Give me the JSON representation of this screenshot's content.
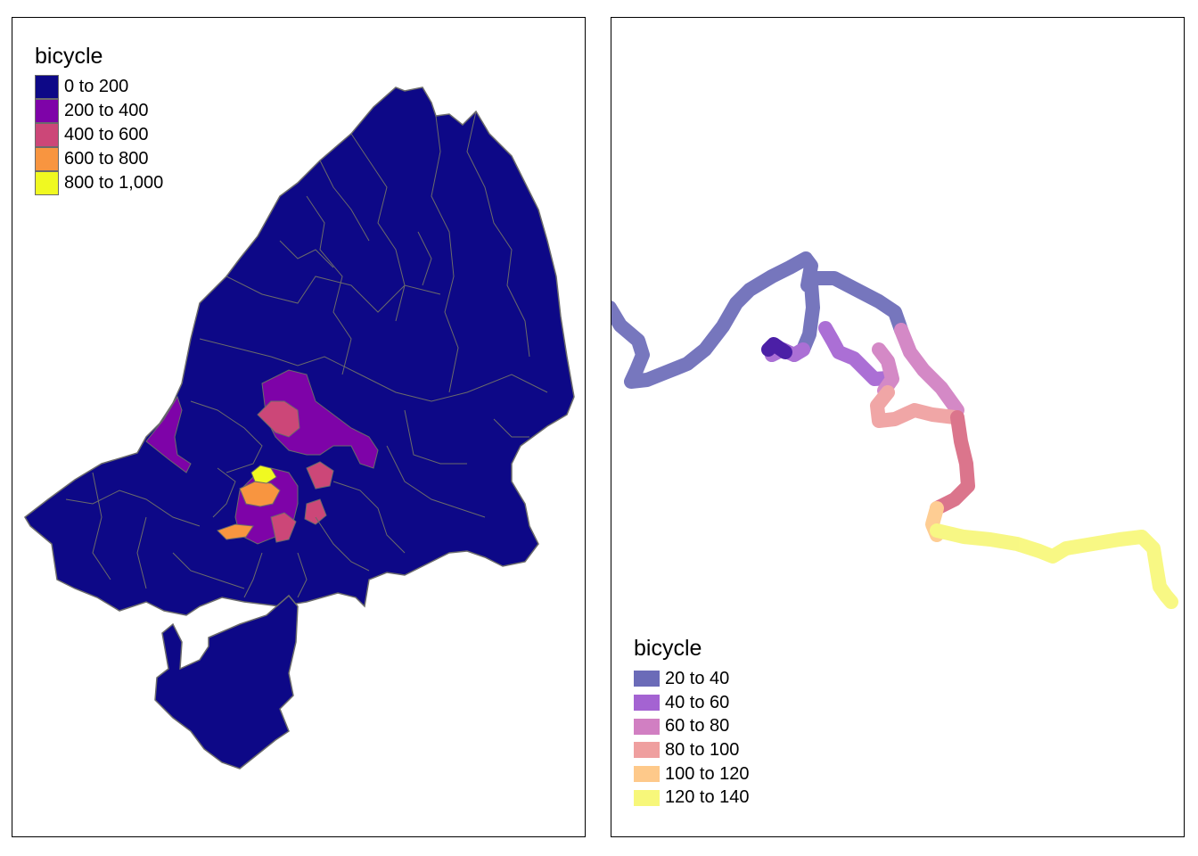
{
  "left_map": {
    "legend": {
      "title": "bicycle",
      "items": [
        {
          "label": "0 to 200",
          "color": "#0d0887"
        },
        {
          "label": "200 to 400",
          "color": "#7e03a8"
        },
        {
          "label": "400 to 600",
          "color": "#cc4778"
        },
        {
          "label": "600 to 800",
          "color": "#f89540"
        },
        {
          "label": "800 to 1,000",
          "color": "#f0f921"
        }
      ]
    },
    "border_color": "#6b6b6b"
  },
  "right_map": {
    "legend": {
      "title": "bicycle",
      "items": [
        {
          "label": "20 to 40",
          "color": "#6b6bb8"
        },
        {
          "label": "40 to 60",
          "color": "#a463d2"
        },
        {
          "label": "60 to 80",
          "color": "#d17fc2"
        },
        {
          "label": "80 to 100",
          "color": "#ef9f9f"
        },
        {
          "label": "100 to 120",
          "color": "#fec98a"
        },
        {
          "label": "120 to 140",
          "color": "#f7f77a"
        }
      ]
    }
  }
}
